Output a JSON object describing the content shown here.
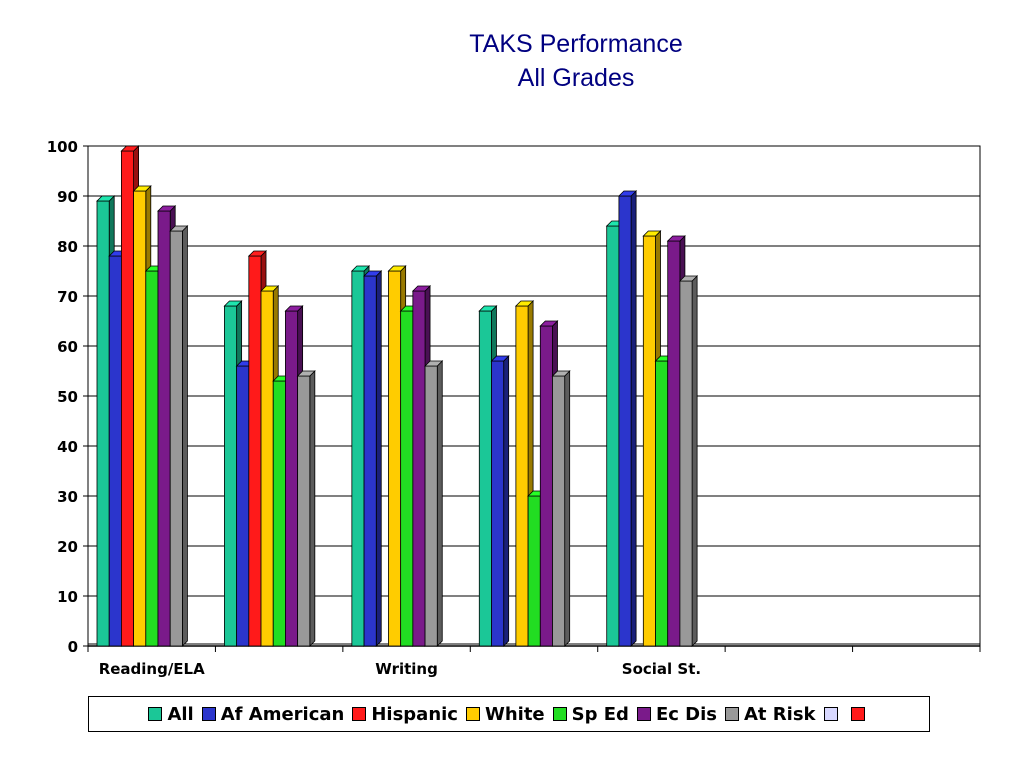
{
  "chart_data": {
    "type": "bar",
    "title": [
      "TAKS Performance",
      "All Grades"
    ],
    "categories": [
      "Reading/ELA",
      "",
      "Writing",
      "",
      "Social St.",
      "",
      ""
    ],
    "xtick_labels_shown": [
      "Reading/ELA",
      "Writing",
      "Social St."
    ],
    "ylim": [
      0,
      100
    ],
    "yticks": [
      0,
      10,
      20,
      30,
      40,
      50,
      60,
      70,
      80,
      90,
      100
    ],
    "grid": true,
    "legend_position": "bottom",
    "series": [
      {
        "name": "All",
        "color": "#1BC797",
        "values": [
          89,
          68,
          75,
          67,
          84,
          null,
          null
        ]
      },
      {
        "name": "Af American",
        "color": "#2B35CC",
        "values": [
          78,
          56,
          74,
          57,
          90,
          null,
          null
        ]
      },
      {
        "name": "Hispanic",
        "color": "#FF1A1A",
        "values": [
          99,
          78,
          null,
          null,
          null,
          null,
          null
        ]
      },
      {
        "name": "White",
        "color": "#FFCC00",
        "values": [
          91,
          71,
          75,
          68,
          82,
          null,
          null
        ]
      },
      {
        "name": "Sp Ed",
        "color": "#22DD22",
        "values": [
          75,
          53,
          67,
          30,
          57,
          null,
          null
        ]
      },
      {
        "name": "Ec Dis",
        "color": "#7A1A8A",
        "values": [
          87,
          67,
          71,
          64,
          81,
          null,
          null
        ]
      },
      {
        "name": "At Risk",
        "color": "#999999",
        "values": [
          83,
          54,
          56,
          54,
          73,
          null,
          null
        ]
      },
      {
        "name": "",
        "color": "#D8D8FF",
        "values": [
          null,
          null,
          null,
          null,
          null,
          null,
          null
        ]
      },
      {
        "name": "",
        "color": "#FF1A1A",
        "values": [
          null,
          null,
          null,
          null,
          null,
          null,
          null
        ]
      }
    ]
  }
}
